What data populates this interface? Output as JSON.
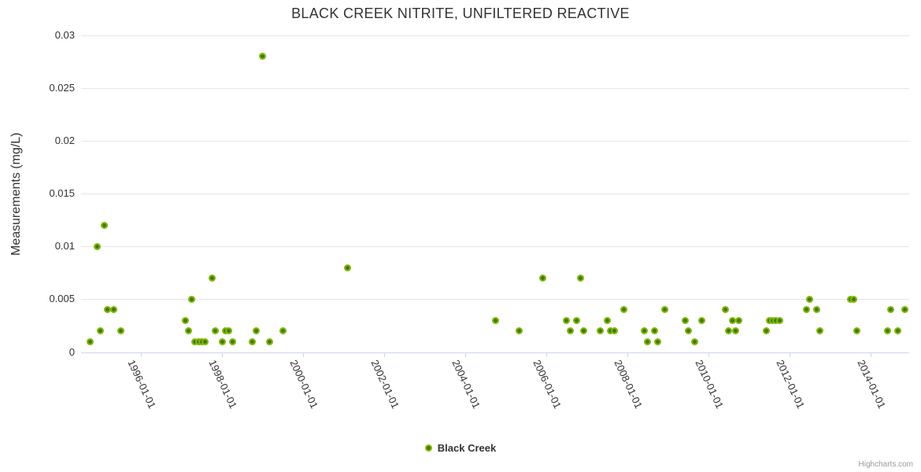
{
  "header": {
    "title": "BLACK CREEK NITRITE, UNFILTERED REACTIVE"
  },
  "legend": {
    "items": [
      {
        "label": "Black Creek"
      }
    ]
  },
  "credits": {
    "label": "Highcharts.com"
  },
  "colors": {
    "background": "#ffffff",
    "marker_outer": "#7cb908",
    "marker_inner": "#46720b",
    "axis_line": "#ccd6eb",
    "grid_line": "#e6e6e6",
    "label_text": "#333333",
    "credits_text": "#999999"
  },
  "chart_data": {
    "type": "scatter",
    "title": "BLACK CREEK NITRITE, UNFILTERED REACTIVE",
    "xlabel": "",
    "ylabel": "Measurements (mg/L)",
    "grid": "horizontal",
    "legend_position": "bottom-center",
    "x_axis": {
      "tick_labels": [
        "1996-01-01",
        "1998-01-01",
        "2000-01-01",
        "2002-01-01",
        "2004-01-01",
        "2006-01-01",
        "2008-01-01",
        "2010-01-01",
        "2012-01-01",
        "2014-01-01"
      ],
      "tick_years": [
        1996,
        1998,
        2000,
        2002,
        2004,
        2006,
        2008,
        2010,
        2012,
        2014
      ],
      "min_year": 1994.52,
      "max_year": 2014.95,
      "label_rotation_deg": 65
    },
    "y_axis": {
      "tick_values": [
        0,
        0.005,
        0.01,
        0.015,
        0.02,
        0.025,
        0.03
      ],
      "tick_labels": [
        "0",
        "0.005",
        "0.01",
        "0.015",
        "0.02",
        "0.025",
        "0.03"
      ],
      "min": 0,
      "max": 0.03
    },
    "series": [
      {
        "name": "Black Creek",
        "color": "#7cb908",
        "points": [
          [
            "1994-10",
            0.001
          ],
          [
            "1994-12",
            0.01
          ],
          [
            "1995-01",
            0.002
          ],
          [
            "1995-02",
            0.012
          ],
          [
            "1995-03",
            0.004
          ],
          [
            "1995-05",
            0.004
          ],
          [
            "1995-07",
            0.002
          ],
          [
            "1997-02",
            0.003
          ],
          [
            "1997-03",
            0.002
          ],
          [
            "1997-04",
            0.005
          ],
          [
            "1997-05",
            0.001
          ],
          [
            "1997-06",
            0.001
          ],
          [
            "1997-07",
            0.001
          ],
          [
            "1997-08",
            0.001
          ],
          [
            "1997-10",
            0.007
          ],
          [
            "1997-11",
            0.002
          ],
          [
            "1998-01",
            0.001
          ],
          [
            "1998-02",
            0.002
          ],
          [
            "1998-03",
            0.002
          ],
          [
            "1998-04",
            0.001
          ],
          [
            "1998-10",
            0.001
          ],
          [
            "1998-11",
            0.002
          ],
          [
            "1999-01",
            0.028
          ],
          [
            "1999-03",
            0.001
          ],
          [
            "1999-07",
            0.002
          ],
          [
            "2001-02",
            0.008
          ],
          [
            "2004-10",
            0.003
          ],
          [
            "2005-05",
            0.002
          ],
          [
            "2005-12",
            0.007
          ],
          [
            "2006-07",
            0.003
          ],
          [
            "2006-08",
            0.002
          ],
          [
            "2006-10",
            0.003
          ],
          [
            "2006-11",
            0.007
          ],
          [
            "2006-12",
            0.002
          ],
          [
            "2007-05",
            0.002
          ],
          [
            "2007-07",
            0.003
          ],
          [
            "2007-08",
            0.002
          ],
          [
            "2007-09",
            0.002
          ],
          [
            "2007-12",
            0.004
          ],
          [
            "2008-06",
            0.002
          ],
          [
            "2008-07",
            0.001
          ],
          [
            "2008-09",
            0.002
          ],
          [
            "2008-10",
            0.001
          ],
          [
            "2008-12",
            0.004
          ],
          [
            "2009-06",
            0.003
          ],
          [
            "2009-07",
            0.002
          ],
          [
            "2009-09",
            0.001
          ],
          [
            "2009-11",
            0.003
          ],
          [
            "2010-06",
            0.004
          ],
          [
            "2010-07",
            0.002
          ],
          [
            "2010-08",
            0.003
          ],
          [
            "2010-09",
            0.002
          ],
          [
            "2010-10",
            0.003
          ],
          [
            "2011-06",
            0.002
          ],
          [
            "2011-07",
            0.003
          ],
          [
            "2011-08",
            0.003
          ],
          [
            "2011-09",
            0.003
          ],
          [
            "2011-10",
            0.003
          ],
          [
            "2012-06",
            0.004
          ],
          [
            "2012-07",
            0.005
          ],
          [
            "2012-09",
            0.004
          ],
          [
            "2012-10",
            0.002
          ],
          [
            "2013-07",
            0.005
          ],
          [
            "2013-08",
            0.005
          ],
          [
            "2013-09",
            0.002
          ],
          [
            "2014-06",
            0.002
          ],
          [
            "2014-07",
            0.004
          ],
          [
            "2014-09",
            0.002
          ],
          [
            "2014-11",
            0.004
          ]
        ]
      }
    ]
  }
}
